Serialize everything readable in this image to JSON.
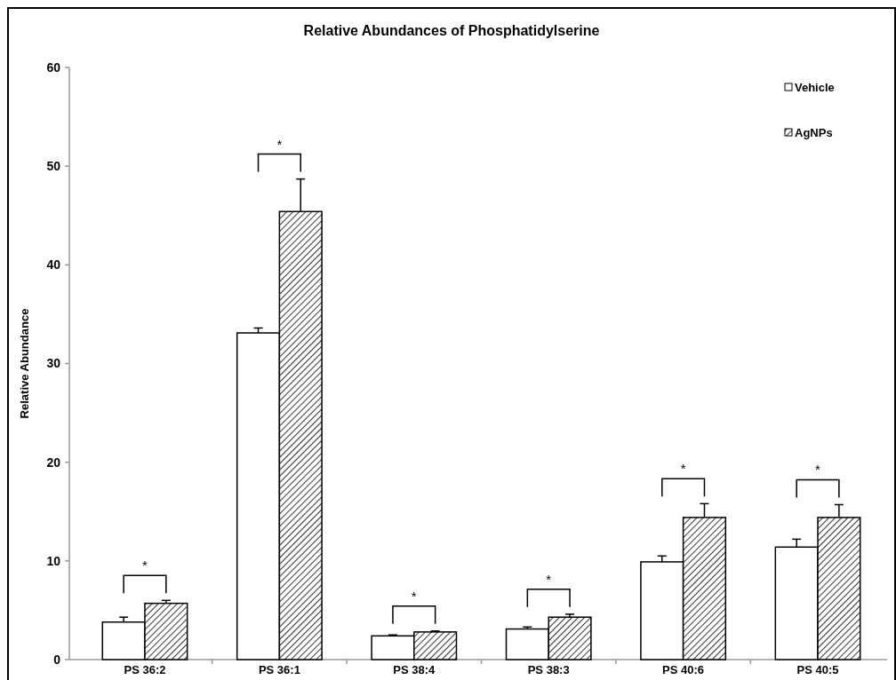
{
  "chart_data": {
    "type": "bar",
    "title": "Relative Abundances of Phosphatidylserine",
    "ylabel": "Relative Abundance",
    "categories": [
      "PS 36:2",
      "PS 36:1",
      "PS 38:4",
      "PS 38:3",
      "PS 40:6",
      "PS 40:5"
    ],
    "series": [
      {
        "name": "Vehicle",
        "color": "#ffffff",
        "values": [
          3.8,
          33.1,
          2.4,
          3.1,
          9.9,
          11.4
        ],
        "errors": [
          [
            3.8,
            4.3
          ],
          [
            33.1,
            33.6
          ],
          [
            2.4,
            2.5
          ],
          [
            3.1,
            3.3
          ],
          [
            9.9,
            10.5
          ],
          [
            11.4,
            12.2
          ]
        ]
      },
      {
        "name": "AgNPs",
        "color": "#000000",
        "values": [
          5.7,
          45.4,
          2.8,
          4.3,
          14.4,
          14.4
        ],
        "errors": [
          [
            5.7,
            6.0
          ],
          [
            45.4,
            48.7
          ],
          [
            2.8,
            2.9
          ],
          [
            4.3,
            4.6
          ],
          [
            14.4,
            15.8
          ],
          [
            14.4,
            15.7
          ]
        ]
      }
    ],
    "annotations": [
      "*",
      "*",
      "*",
      "*",
      "*",
      "*"
    ],
    "ylim": [
      0,
      60
    ],
    "yticks": [
      0,
      10,
      20,
      30,
      40,
      50,
      60
    ],
    "grid": false,
    "legend": "top right"
  }
}
